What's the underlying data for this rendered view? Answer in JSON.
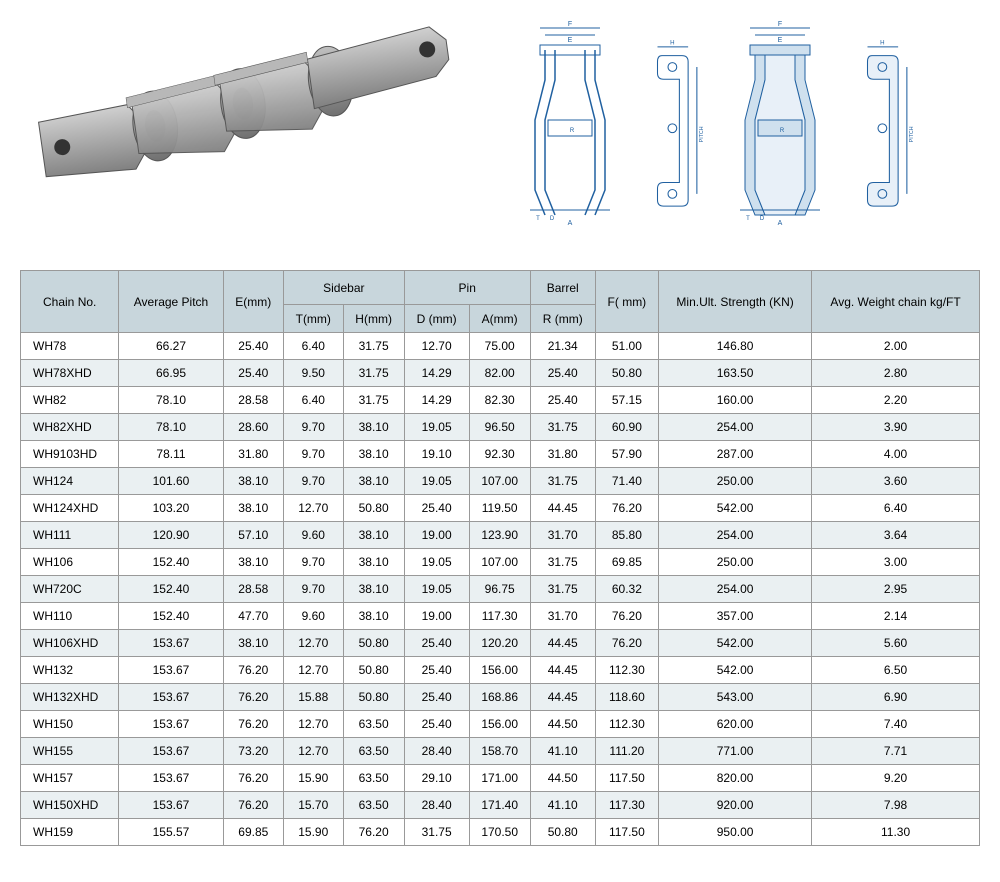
{
  "table": {
    "header_bg": "#c8d6dc",
    "row_even_bg": "#eaf0f2",
    "row_odd_bg": "#ffffff",
    "border_color": "#999999",
    "font_size": 12,
    "columns_top": {
      "chain_no": "Chain No.",
      "avg_pitch": "Average Pitch",
      "e_mm": "E(mm)",
      "sidebar": "Sidebar",
      "pin": "Pin",
      "barrel": "Barrel",
      "f_mm": "F( mm)",
      "min_ult": "Min.Ult. Strength (KN)",
      "avg_weight": "Avg. Weight chain kg/FT"
    },
    "columns_sub": {
      "t_mm": "T(mm)",
      "h_mm": "H(mm)",
      "d_mm": "D (mm)",
      "a_mm": "A(mm)",
      "r_mm": "R (mm)"
    },
    "rows": [
      [
        "WH78",
        "66.27",
        "25.40",
        "6.40",
        "31.75",
        "12.70",
        "75.00",
        "21.34",
        "51.00",
        "146.80",
        "2.00"
      ],
      [
        "WH78XHD",
        "66.95",
        "25.40",
        "9.50",
        "31.75",
        "14.29",
        "82.00",
        "25.40",
        "50.80",
        "163.50",
        "2.80"
      ],
      [
        "WH82",
        "78.10",
        "28.58",
        "6.40",
        "31.75",
        "14.29",
        "82.30",
        "25.40",
        "57.15",
        "160.00",
        "2.20"
      ],
      [
        "WH82XHD",
        "78.10",
        "28.60",
        "9.70",
        "38.10",
        "19.05",
        "96.50",
        "31.75",
        "60.90",
        "254.00",
        "3.90"
      ],
      [
        "WH9103HD",
        "78.11",
        "31.80",
        "9.70",
        "38.10",
        "19.10",
        "92.30",
        "31.80",
        "57.90",
        "287.00",
        "4.00"
      ],
      [
        "WH124",
        "101.60",
        "38.10",
        "9.70",
        "38.10",
        "19.05",
        "107.00",
        "31.75",
        "71.40",
        "250.00",
        "3.60"
      ],
      [
        "WH124XHD",
        "103.20",
        "38.10",
        "12.70",
        "50.80",
        "25.40",
        "119.50",
        "44.45",
        "76.20",
        "542.00",
        "6.40"
      ],
      [
        "WH111",
        "120.90",
        "57.10",
        "9.60",
        "38.10",
        "19.00",
        "123.90",
        "31.70",
        "85.80",
        "254.00",
        "3.64"
      ],
      [
        "WH106",
        "152.40",
        "38.10",
        "9.70",
        "38.10",
        "19.05",
        "107.00",
        "31.75",
        "69.85",
        "250.00",
        "3.00"
      ],
      [
        "WH720C",
        "152.40",
        "28.58",
        "9.70",
        "38.10",
        "19.05",
        "96.75",
        "31.75",
        "60.32",
        "254.00",
        "2.95"
      ],
      [
        "WH110",
        "152.40",
        "47.70",
        "9.60",
        "38.10",
        "19.00",
        "117.30",
        "31.70",
        "76.20",
        "357.00",
        "2.14"
      ],
      [
        "WH106XHD",
        "153.67",
        "38.10",
        "12.70",
        "50.80",
        "25.40",
        "120.20",
        "44.45",
        "76.20",
        "542.00",
        "5.60"
      ],
      [
        "WH132",
        "153.67",
        "76.20",
        "12.70",
        "50.80",
        "25.40",
        "156.00",
        "44.45",
        "112.30",
        "542.00",
        "6.50"
      ],
      [
        "WH132XHD",
        "153.67",
        "76.20",
        "15.88",
        "50.80",
        "25.40",
        "168.86",
        "44.45",
        "118.60",
        "543.00",
        "6.90"
      ],
      [
        "WH150",
        "153.67",
        "76.20",
        "12.70",
        "63.50",
        "25.40",
        "156.00",
        "44.50",
        "112.30",
        "620.00",
        "7.40"
      ],
      [
        "WH155",
        "153.67",
        "73.20",
        "12.70",
        "63.50",
        "28.40",
        "158.70",
        "41.10",
        "111.20",
        "771.00",
        "7.71"
      ],
      [
        "WH157",
        "153.67",
        "76.20",
        "15.90",
        "63.50",
        "29.10",
        "171.00",
        "44.50",
        "117.50",
        "820.00",
        "9.20"
      ],
      [
        "WH150XHD",
        "153.67",
        "76.20",
        "15.70",
        "63.50",
        "28.40",
        "171.40",
        "41.10",
        "117.30",
        "920.00",
        "7.98"
      ],
      [
        "WH159",
        "155.57",
        "69.85",
        "15.90",
        "76.20",
        "31.75",
        "170.50",
        "50.80",
        "117.50",
        "950.00",
        "11.30"
      ]
    ]
  },
  "diagram_labels": {
    "f": "F",
    "e": "E",
    "h": "H",
    "a": "A",
    "d": "D",
    "t": "T",
    "r": "R",
    "pitch": "PITCH"
  }
}
